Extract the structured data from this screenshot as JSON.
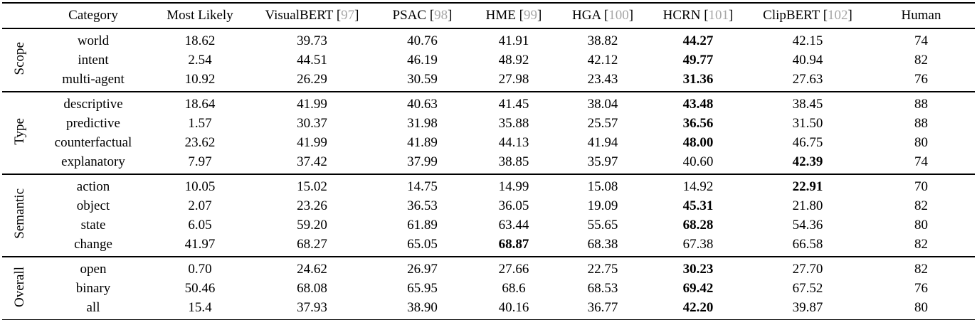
{
  "table": {
    "text_color": "#000000",
    "background": "#ffffff",
    "citation_color": "#a6a6a6",
    "columns": [
      {
        "label": "Category",
        "ref": null
      },
      {
        "label": "Most Likely",
        "ref": null
      },
      {
        "label": "VisualBERT",
        "ref": "97"
      },
      {
        "label": "PSAC",
        "ref": "98"
      },
      {
        "label": "HME",
        "ref": "99"
      },
      {
        "label": "HGA",
        "ref": "100"
      },
      {
        "label": "HCRN",
        "ref": "101"
      },
      {
        "label": "ClipBERT",
        "ref": "102"
      },
      {
        "label": "Human",
        "ref": null
      }
    ],
    "groups": [
      {
        "label": "Scope",
        "rows": [
          {
            "category": "world",
            "values": [
              "18.62",
              "39.73",
              "40.76",
              "41.91",
              "38.82",
              "44.27",
              "42.15",
              "74"
            ],
            "bold": 5
          },
          {
            "category": "intent",
            "values": [
              "2.54",
              "44.51",
              "46.19",
              "48.92",
              "42.12",
              "49.77",
              "40.94",
              "82"
            ],
            "bold": 5
          },
          {
            "category": "multi-agent",
            "values": [
              "10.92",
              "26.29",
              "30.59",
              "27.98",
              "23.43",
              "31.36",
              "27.63",
              "76"
            ],
            "bold": 5
          }
        ]
      },
      {
        "label": "Type",
        "rows": [
          {
            "category": "descriptive",
            "values": [
              "18.64",
              "41.99",
              "40.63",
              "41.45",
              "38.04",
              "43.48",
              "38.45",
              "88"
            ],
            "bold": 5
          },
          {
            "category": "predictive",
            "values": [
              "1.57",
              "30.37",
              "31.98",
              "35.88",
              "25.57",
              "36.56",
              "31.50",
              "88"
            ],
            "bold": 5
          },
          {
            "category": "counterfactual",
            "values": [
              "23.62",
              "41.99",
              "41.89",
              "44.13",
              "41.94",
              "48.00",
              "46.75",
              "80"
            ],
            "bold": 5
          },
          {
            "category": "explanatory",
            "values": [
              "7.97",
              "37.42",
              "37.99",
              "38.85",
              "35.97",
              "40.60",
              "42.39",
              "74"
            ],
            "bold": 6
          }
        ]
      },
      {
        "label": "Semantic",
        "rows": [
          {
            "category": "action",
            "values": [
              "10.05",
              "15.02",
              "14.75",
              "14.99",
              "15.08",
              "14.92",
              "22.91",
              "70"
            ],
            "bold": 6
          },
          {
            "category": "object",
            "values": [
              "2.07",
              "23.26",
              "36.53",
              "36.05",
              "19.09",
              "45.31",
              "21.80",
              "82"
            ],
            "bold": 5
          },
          {
            "category": "state",
            "values": [
              "6.05",
              "59.20",
              "61.89",
              "63.44",
              "55.65",
              "68.28",
              "54.36",
              "80"
            ],
            "bold": 5
          },
          {
            "category": "change",
            "values": [
              "41.97",
              "68.27",
              "65.05",
              "68.87",
              "68.38",
              "67.38",
              "66.58",
              "82"
            ],
            "bold": 3
          }
        ]
      },
      {
        "label": "Overall",
        "rows": [
          {
            "category": "open",
            "values": [
              "0.70",
              "24.62",
              "26.97",
              "27.66",
              "22.75",
              "30.23",
              "27.70",
              "82"
            ],
            "bold": 5
          },
          {
            "category": "binary",
            "values": [
              "50.46",
              "68.08",
              "65.95",
              "68.6",
              "68.53",
              "69.42",
              "67.52",
              "76"
            ],
            "bold": 5
          },
          {
            "category": "all",
            "values": [
              "15.4",
              "37.93",
              "38.90",
              "40.16",
              "36.77",
              "42.20",
              "39.87",
              "80"
            ],
            "bold": 5
          }
        ]
      }
    ]
  }
}
